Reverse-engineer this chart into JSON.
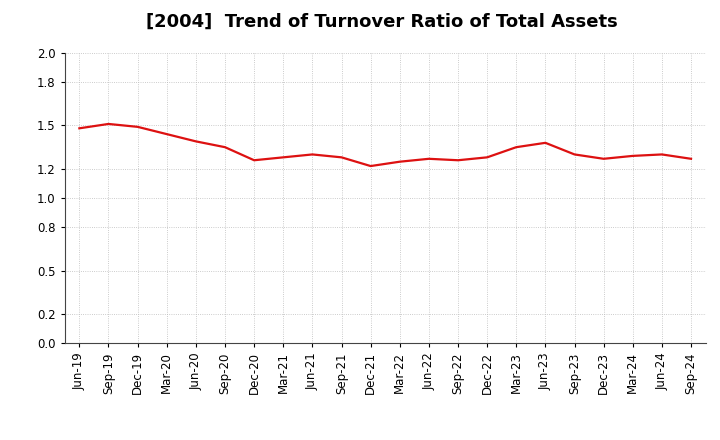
{
  "title": "[2004]  Trend of Turnover Ratio of Total Assets",
  "x_labels": [
    "Jun-19",
    "Sep-19",
    "Dec-19",
    "Mar-20",
    "Jun-20",
    "Sep-20",
    "Dec-20",
    "Mar-21",
    "Jun-21",
    "Sep-21",
    "Dec-21",
    "Mar-22",
    "Jun-22",
    "Sep-22",
    "Dec-22",
    "Mar-23",
    "Jun-23",
    "Sep-23",
    "Dec-23",
    "Mar-24",
    "Jun-24",
    "Sep-24"
  ],
  "values": [
    1.48,
    1.51,
    1.49,
    1.44,
    1.39,
    1.35,
    1.26,
    1.28,
    1.3,
    1.28,
    1.22,
    1.25,
    1.27,
    1.26,
    1.28,
    1.35,
    1.38,
    1.3,
    1.27,
    1.29,
    1.3,
    1.27
  ],
  "line_color": "#dd1111",
  "line_width": 1.6,
  "ylim": [
    0.0,
    2.0
  ],
  "yticks": [
    0.0,
    0.2,
    0.5,
    0.8,
    1.0,
    1.2,
    1.5,
    1.8,
    2.0
  ],
  "grid_color": "#bbbbbb",
  "bg_color": "#ffffff",
  "title_fontsize": 13,
  "tick_fontsize": 8.5
}
